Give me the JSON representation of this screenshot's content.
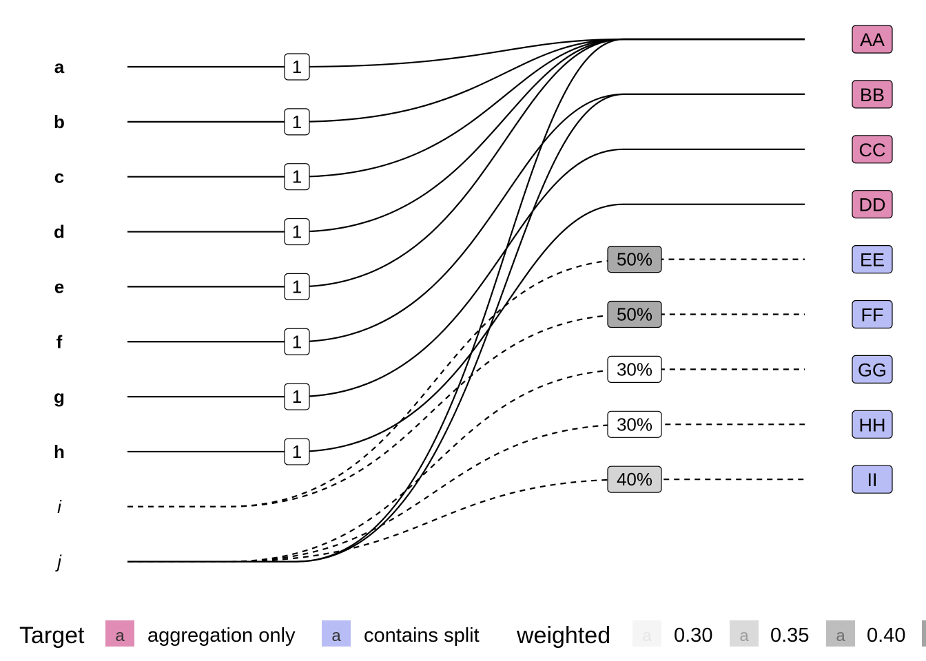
{
  "sources": [
    {
      "label": "a",
      "style": "bold"
    },
    {
      "label": "b",
      "style": "bold"
    },
    {
      "label": "c",
      "style": "bold"
    },
    {
      "label": "d",
      "style": "bold"
    },
    {
      "label": "e",
      "style": "bold"
    },
    {
      "label": "f",
      "style": "bold"
    },
    {
      "label": "g",
      "style": "bold"
    },
    {
      "label": "h",
      "style": "bold"
    },
    {
      "label": "i",
      "style": "italic"
    },
    {
      "label": "j",
      "style": "italic"
    }
  ],
  "targets": [
    {
      "label": "AA",
      "type": "aggregation"
    },
    {
      "label": "BB",
      "type": "aggregation"
    },
    {
      "label": "CC",
      "type": "aggregation"
    },
    {
      "label": "DD",
      "type": "aggregation"
    },
    {
      "label": "EE",
      "type": "split"
    },
    {
      "label": "FF",
      "type": "split"
    },
    {
      "label": "GG",
      "type": "split"
    },
    {
      "label": "HH",
      "type": "split"
    },
    {
      "label": "II",
      "type": "split"
    }
  ],
  "links": [
    {
      "from": "a",
      "to": "AA",
      "weight": 1,
      "label": "1",
      "dashed": false
    },
    {
      "from": "b",
      "to": "AA",
      "weight": 1,
      "label": "1",
      "dashed": false
    },
    {
      "from": "c",
      "to": "AA",
      "weight": 1,
      "label": "1",
      "dashed": false
    },
    {
      "from": "d",
      "to": "AA",
      "weight": 1,
      "label": "1",
      "dashed": false
    },
    {
      "from": "e",
      "to": "AA",
      "weight": 1,
      "label": "1",
      "dashed": false
    },
    {
      "from": "f",
      "to": "BB",
      "weight": 1,
      "label": "1",
      "dashed": false
    },
    {
      "from": "g",
      "to": "CC",
      "weight": 1,
      "label": "1",
      "dashed": false
    },
    {
      "from": "h",
      "to": "DD",
      "weight": 1,
      "label": "1",
      "dashed": false
    },
    {
      "from": "i",
      "to": "EE",
      "weight": 0.5,
      "label": "50%",
      "dashed": true
    },
    {
      "from": "i",
      "to": "FF",
      "weight": 0.5,
      "label": "50%",
      "dashed": true
    },
    {
      "from": "j",
      "to": "GG",
      "weight": 0.3,
      "label": "30%",
      "dashed": true
    },
    {
      "from": "j",
      "to": "HH",
      "weight": 0.3,
      "label": "30%",
      "dashed": true
    },
    {
      "from": "j",
      "to": "II",
      "weight": 0.4,
      "label": "40%",
      "dashed": true
    },
    {
      "from": "j",
      "to": "BB",
      "weight": 1,
      "label": "",
      "dashed": false
    },
    {
      "from": "j",
      "to": "AA",
      "weight": 1,
      "label": "",
      "dashed": false
    }
  ],
  "legend": {
    "target_title": "Target",
    "target_items": [
      {
        "key": "a",
        "label": "aggregation only",
        "color": "#e08cb4"
      },
      {
        "key": "a",
        "label": "contains split",
        "color": "#b9bdf5"
      }
    ],
    "weight_title": "weighted",
    "weight_items": [
      {
        "key": "a",
        "label": "0.30",
        "fill": "#f5f5f5"
      },
      {
        "key": "a",
        "label": "0.35",
        "fill": "#dadada"
      },
      {
        "key": "a",
        "label": "0.40",
        "fill": "#bdbdbd"
      }
    ]
  },
  "colors": {
    "aggregation": "#e08cb4",
    "split": "#b9bdf5",
    "line": "#000000",
    "weight_0.3": "#ffffff",
    "weight_0.4": "#d4d4d4",
    "weight_0.5": "#a9a9a9"
  }
}
